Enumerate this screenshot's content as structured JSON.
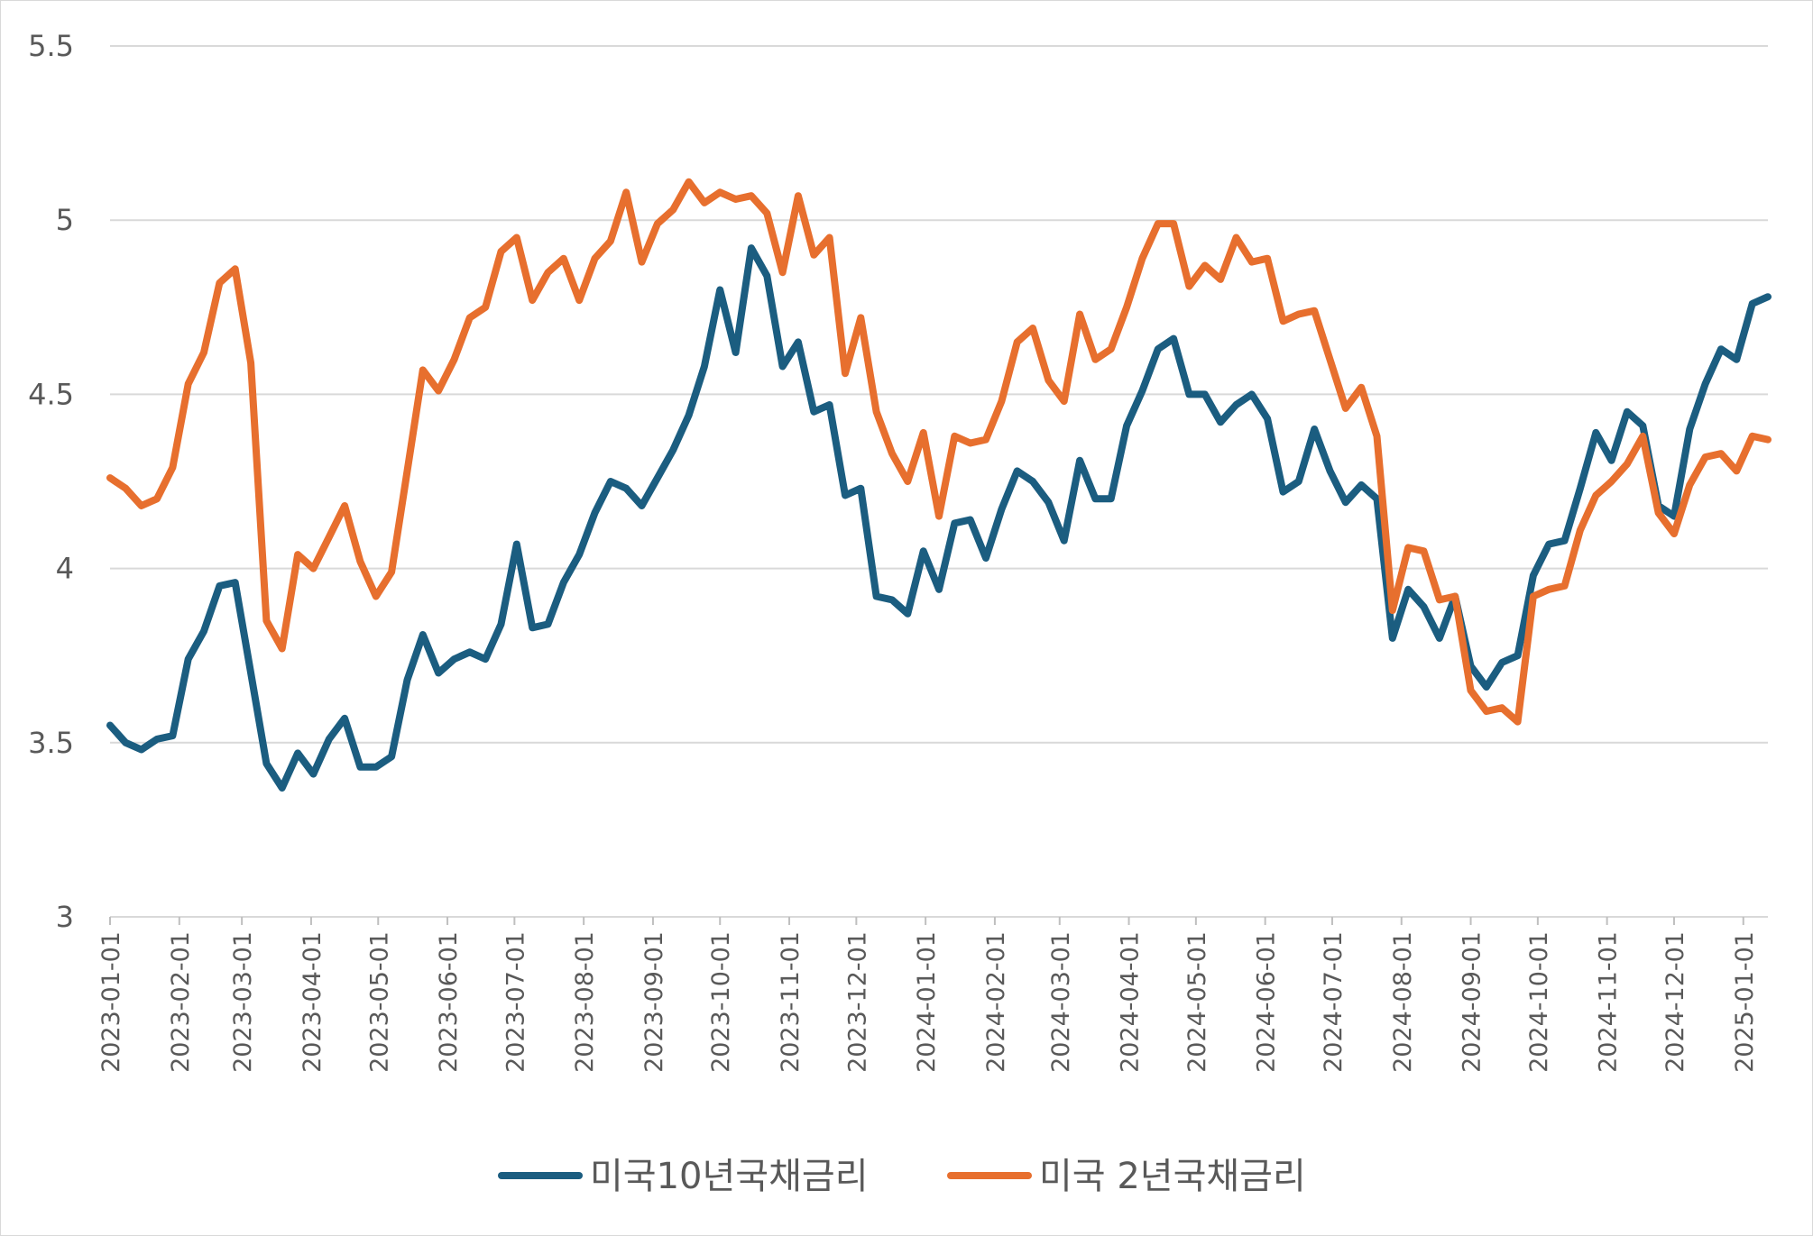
{
  "chart_data": {
    "type": "line",
    "title": "",
    "xlabel": "",
    "ylabel": "",
    "ylim": [
      3,
      5.5
    ],
    "yticks": [
      "3",
      "3.5",
      "4",
      "4.5",
      "5",
      "5.5"
    ],
    "ytick_values": [
      3,
      3.5,
      4,
      4.5,
      5,
      5.5
    ],
    "grid": true,
    "legend_position": "bottom",
    "x_start": "2023-01-01",
    "x_step_days": 7,
    "x_tick_labels": [
      "2023-01-01",
      "2023-02-01",
      "2023-03-01",
      "2023-04-01",
      "2023-05-01",
      "2023-06-01",
      "2023-07-01",
      "2023-08-01",
      "2023-09-01",
      "2023-10-01",
      "2023-11-01",
      "2023-12-01",
      "2024-01-01",
      "2024-02-01",
      "2024-03-01",
      "2024-04-01",
      "2024-05-01",
      "2024-06-01",
      "2024-07-01",
      "2024-08-01",
      "2024-09-01",
      "2024-10-01",
      "2024-11-01",
      "2024-12-01",
      "2025-01-01"
    ],
    "series": [
      {
        "name": "미국10년국채금리",
        "color": "#1b5d80",
        "values": [
          3.55,
          3.5,
          3.48,
          3.51,
          3.52,
          3.74,
          3.82,
          3.95,
          3.96,
          3.7,
          3.44,
          3.37,
          3.47,
          3.41,
          3.51,
          3.57,
          3.43,
          3.43,
          3.46,
          3.68,
          3.81,
          3.7,
          3.74,
          3.76,
          3.74,
          3.84,
          4.07,
          3.83,
          3.84,
          3.96,
          4.04,
          4.16,
          4.25,
          4.23,
          4.18,
          4.26,
          4.34,
          4.44,
          4.58,
          4.8,
          4.62,
          4.92,
          4.84,
          4.58,
          4.65,
          4.45,
          4.47,
          4.21,
          4.23,
          3.92,
          3.91,
          3.87,
          4.05,
          3.94,
          4.13,
          4.14,
          4.03,
          4.17,
          4.28,
          4.25,
          4.19,
          4.08,
          4.31,
          4.2,
          4.2,
          4.41,
          4.51,
          4.63,
          4.66,
          4.5,
          4.5,
          4.42,
          4.47,
          4.5,
          4.43,
          4.22,
          4.25,
          4.4,
          4.28,
          4.19,
          4.24,
          4.2,
          3.8,
          3.94,
          3.89,
          3.8,
          3.92,
          3.72,
          3.66,
          3.73,
          3.75,
          3.98,
          4.07,
          4.08,
          4.23,
          4.39,
          4.31,
          4.45,
          4.41,
          4.18,
          4.15,
          4.4,
          4.53,
          4.63,
          4.6,
          4.76,
          4.78
        ]
      },
      {
        "name": "미국 2년국채금리",
        "color": "#e76f2e",
        "values": [
          4.26,
          4.23,
          4.18,
          4.2,
          4.29,
          4.53,
          4.62,
          4.82,
          4.86,
          4.59,
          3.85,
          3.77,
          4.04,
          4.0,
          4.09,
          4.18,
          4.02,
          3.92,
          3.99,
          4.28,
          4.57,
          4.51,
          4.6,
          4.72,
          4.75,
          4.91,
          4.95,
          4.77,
          4.85,
          4.89,
          4.77,
          4.89,
          4.94,
          5.08,
          4.88,
          4.99,
          5.03,
          5.11,
          5.05,
          5.08,
          5.06,
          5.07,
          5.02,
          4.85,
          5.07,
          4.9,
          4.95,
          4.56,
          4.72,
          4.45,
          4.33,
          4.25,
          4.39,
          4.15,
          4.38,
          4.36,
          4.37,
          4.48,
          4.65,
          4.69,
          4.54,
          4.48,
          4.73,
          4.6,
          4.63,
          4.75,
          4.89,
          4.99,
          4.99,
          4.81,
          4.87,
          4.83,
          4.95,
          4.88,
          4.89,
          4.71,
          4.73,
          4.74,
          4.6,
          4.46,
          4.52,
          4.38,
          3.88,
          4.06,
          4.05,
          3.91,
          3.92,
          3.65,
          3.59,
          3.6,
          3.56,
          3.92,
          3.94,
          3.95,
          4.11,
          4.21,
          4.25,
          4.3,
          4.38,
          4.16,
          4.1,
          4.24,
          4.32,
          4.33,
          4.28,
          4.38,
          4.37
        ]
      }
    ]
  }
}
